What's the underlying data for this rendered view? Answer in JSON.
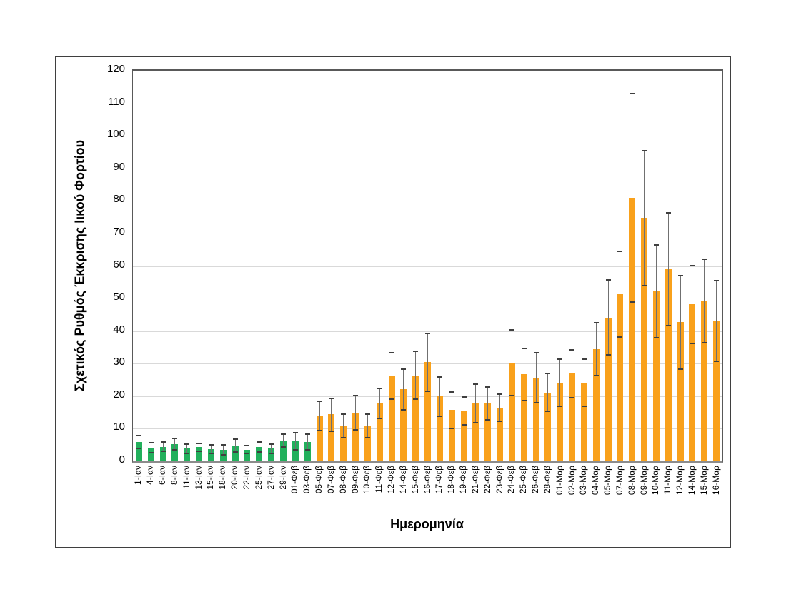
{
  "chart_data": {
    "type": "bar",
    "title": "",
    "xlabel": "Ημερομηνία",
    "ylabel": "Σχετικός Ρυθμός Έκκρισης Ιικού Φορτίου",
    "ylim": [
      0,
      120
    ],
    "ytick_step": 10,
    "grid": true,
    "error_bars": true,
    "legend": "none",
    "colors": {
      "green": "#22b05c",
      "orange": "#f9a11b",
      "error_line": "#707070",
      "error_cap": "#3f3f3f",
      "gridline": "#d9d9d9",
      "axis": "#8c8c8c"
    },
    "points": [
      {
        "label": "1-Ιαν",
        "value": 6.0,
        "err_low": 4.0,
        "err_high": 8.0,
        "group": "green"
      },
      {
        "label": "4-Ιαν",
        "value": 4.2,
        "err_low": 2.7,
        "err_high": 5.7,
        "group": "green"
      },
      {
        "label": "6-Ιαν",
        "value": 4.4,
        "err_low": 3.0,
        "err_high": 5.9,
        "group": "green"
      },
      {
        "label": "8-Ιαν",
        "value": 5.3,
        "err_low": 3.6,
        "err_high": 7.0,
        "group": "green"
      },
      {
        "label": "11-Ιαν",
        "value": 3.9,
        "err_low": 2.5,
        "err_high": 5.3,
        "group": "green"
      },
      {
        "label": "13-Ιαν",
        "value": 4.3,
        "err_low": 3.0,
        "err_high": 5.6,
        "group": "green"
      },
      {
        "label": "15-Ιαν",
        "value": 3.7,
        "err_low": 2.4,
        "err_high": 5.0,
        "group": "green"
      },
      {
        "label": "18-Ιαν",
        "value": 3.5,
        "err_low": 2.0,
        "err_high": 5.0,
        "group": "green"
      },
      {
        "label": "20-Ιαν",
        "value": 4.8,
        "err_low": 2.8,
        "err_high": 6.8,
        "group": "green"
      },
      {
        "label": "22-Ιαν",
        "value": 3.6,
        "err_low": 2.4,
        "err_high": 4.8,
        "group": "green"
      },
      {
        "label": "25-Ιαν",
        "value": 4.4,
        "err_low": 2.9,
        "err_high": 5.9,
        "group": "green"
      },
      {
        "label": "27-Ιαν",
        "value": 3.9,
        "err_low": 2.5,
        "err_high": 5.3,
        "group": "green"
      },
      {
        "label": "29-Ιαν",
        "value": 6.4,
        "err_low": 4.5,
        "err_high": 8.3,
        "group": "green"
      },
      {
        "label": "01-Φεβ",
        "value": 6.1,
        "err_low": 3.5,
        "err_high": 8.7,
        "group": "green"
      },
      {
        "label": "03-Φεβ",
        "value": 5.9,
        "err_low": 3.5,
        "err_high": 8.3,
        "group": "green"
      },
      {
        "label": "05-Φεβ",
        "value": 14.0,
        "err_low": 9.5,
        "err_high": 18.5,
        "group": "orange"
      },
      {
        "label": "07-Φεβ",
        "value": 14.4,
        "err_low": 9.3,
        "err_high": 19.4,
        "group": "orange"
      },
      {
        "label": "08-Φεβ",
        "value": 10.8,
        "err_low": 7.3,
        "err_high": 14.5,
        "group": "orange"
      },
      {
        "label": "09-Φεβ",
        "value": 15.0,
        "err_low": 9.7,
        "err_high": 20.3,
        "group": "orange"
      },
      {
        "label": "10-Φεβ",
        "value": 10.9,
        "err_low": 7.3,
        "err_high": 14.4,
        "group": "orange"
      },
      {
        "label": "11-Φεβ",
        "value": 17.7,
        "err_low": 13.1,
        "err_high": 22.3,
        "group": "orange"
      },
      {
        "label": "12-Φεβ",
        "value": 26.2,
        "err_low": 19.0,
        "err_high": 33.3,
        "group": "orange"
      },
      {
        "label": "14-Φεβ",
        "value": 22.1,
        "err_low": 15.9,
        "err_high": 28.4,
        "group": "orange"
      },
      {
        "label": "15-Φεβ",
        "value": 26.4,
        "err_low": 19.2,
        "err_high": 33.7,
        "group": "orange"
      },
      {
        "label": "16-Φεβ",
        "value": 30.4,
        "err_low": 21.6,
        "err_high": 39.2,
        "group": "orange"
      },
      {
        "label": "17-Φεβ",
        "value": 19.9,
        "err_low": 13.8,
        "err_high": 25.8,
        "group": "orange"
      },
      {
        "label": "18-Φεβ",
        "value": 15.7,
        "err_low": 10.0,
        "err_high": 21.4,
        "group": "orange"
      },
      {
        "label": "19-Φεβ",
        "value": 15.4,
        "err_low": 11.1,
        "err_high": 19.8,
        "group": "orange"
      },
      {
        "label": "21-Φεβ",
        "value": 17.7,
        "err_low": 11.9,
        "err_high": 23.7,
        "group": "orange"
      },
      {
        "label": "22-Φεβ",
        "value": 17.9,
        "err_low": 12.8,
        "err_high": 22.9,
        "group": "orange"
      },
      {
        "label": "23-Φεβ",
        "value": 16.4,
        "err_low": 12.2,
        "err_high": 20.7,
        "group": "orange"
      },
      {
        "label": "24-Φεβ",
        "value": 30.3,
        "err_low": 20.1,
        "err_high": 40.4,
        "group": "orange"
      },
      {
        "label": "25-Φεβ",
        "value": 26.7,
        "err_low": 18.7,
        "err_high": 34.7,
        "group": "orange"
      },
      {
        "label": "26-Φεβ",
        "value": 25.6,
        "err_low": 18.1,
        "err_high": 33.3,
        "group": "orange"
      },
      {
        "label": "28-Φεβ",
        "value": 21.0,
        "err_low": 15.3,
        "err_high": 27.0,
        "group": "orange"
      },
      {
        "label": "01-Μαρ",
        "value": 24.1,
        "err_low": 16.8,
        "err_high": 31.4,
        "group": "orange"
      },
      {
        "label": "02-Μαρ",
        "value": 27.0,
        "err_low": 19.6,
        "err_high": 34.2,
        "group": "orange"
      },
      {
        "label": "03-Μαρ",
        "value": 24.1,
        "err_low": 16.8,
        "err_high": 31.4,
        "group": "orange"
      },
      {
        "label": "04-Μαρ",
        "value": 34.5,
        "err_low": 26.4,
        "err_high": 42.6,
        "group": "orange"
      },
      {
        "label": "05-Μαρ",
        "value": 44.0,
        "err_low": 32.6,
        "err_high": 55.8,
        "group": "orange"
      },
      {
        "label": "07-Μαρ",
        "value": 51.4,
        "err_low": 38.2,
        "err_high": 64.4,
        "group": "orange"
      },
      {
        "label": "08-Μαρ",
        "value": 81.0,
        "err_low": 49.0,
        "err_high": 113.0,
        "group": "orange"
      },
      {
        "label": "09-Μαρ",
        "value": 74.8,
        "err_low": 54.0,
        "err_high": 95.5,
        "group": "orange"
      },
      {
        "label": "10-Μαρ",
        "value": 52.3,
        "err_low": 38.0,
        "err_high": 66.4,
        "group": "orange"
      },
      {
        "label": "11-Μαρ",
        "value": 59.0,
        "err_low": 41.7,
        "err_high": 76.4,
        "group": "orange"
      },
      {
        "label": "12-Μαρ",
        "value": 42.7,
        "err_low": 28.4,
        "err_high": 57.0,
        "group": "orange"
      },
      {
        "label": "14-Μαρ",
        "value": 48.2,
        "err_low": 36.3,
        "err_high": 60.1,
        "group": "orange"
      },
      {
        "label": "15-Μαρ",
        "value": 49.3,
        "err_low": 36.4,
        "err_high": 62.2,
        "group": "orange"
      },
      {
        "label": "16-Μαρ",
        "value": 43.0,
        "err_low": 30.8,
        "err_high": 55.5,
        "group": "orange"
      }
    ]
  }
}
